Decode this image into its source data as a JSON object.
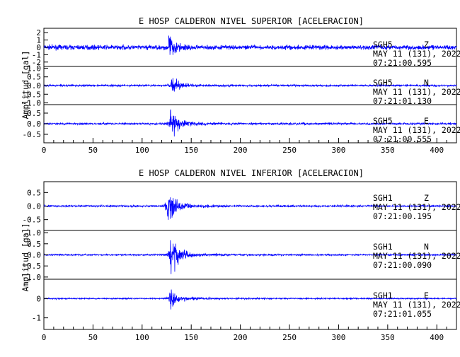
{
  "panels": [
    {
      "title": "E HOSP CALDERON NIVEL SUPERIOR [ACELERACION]",
      "ylabel": "Amplitud [gal]",
      "traces": [
        {
          "station": "SGH5",
          "component": "Z",
          "date": "MAY 11 (131), 2022",
          "time": "07:21:00.595",
          "ticks": [
            "2",
            "1",
            "0",
            "-1",
            "-2"
          ],
          "tick_values": [
            2,
            1,
            0,
            -1,
            -2
          ],
          "ylim": [
            -2.6,
            2.6
          ],
          "noise": 0.28,
          "peak": 1.9,
          "onset": 126,
          "jitter": 0.18
        },
        {
          "station": "SGH5",
          "component": "N",
          "date": "MAY 11 (131), 2022",
          "time": "07:21:01.130",
          "ticks": [
            "1.0",
            "0.5",
            "0.0",
            "-0.5",
            "-1.0"
          ],
          "tick_values": [
            1.0,
            0.5,
            0.0,
            -0.5,
            -1.0
          ],
          "ylim": [
            -1.1,
            1.1
          ],
          "noise": 0.05,
          "peak": 0.5,
          "onset": 129,
          "jitter": 0.05
        },
        {
          "station": "SGH5",
          "component": "E",
          "date": "MAY 11 (131), 2022",
          "time": "07:21:00.555",
          "ticks": [
            "0.5",
            "0.0",
            "-0.5"
          ],
          "tick_values": [
            0.5,
            0.0,
            -0.5
          ],
          "ylim": [
            -0.9,
            0.9
          ],
          "noise": 0.04,
          "peak": 0.8,
          "onset": 128,
          "jitter": 0.04
        }
      ]
    },
    {
      "title": "E HOSP CALDERON NIVEL INFERIOR [ACELERACION]",
      "ylabel": "Amplitud [gal]",
      "traces": [
        {
          "station": "SGH1",
          "component": "Z",
          "date": "MAY 11 (131), 2022",
          "time": "07:21:00.195",
          "ticks": [
            "0.5",
            "0.0",
            "-0.5"
          ],
          "tick_values": [
            0.5,
            0.0,
            -0.5
          ],
          "ylim": [
            -0.9,
            0.9
          ],
          "noise": 0.03,
          "peak": 0.75,
          "onset": 125,
          "jitter": 0.03
        },
        {
          "station": "SGH1",
          "component": "N",
          "date": "MAY 11 (131), 2022",
          "time": "07:21:00.090",
          "ticks": [
            "1.0",
            "0.5",
            "0.0",
            "-0.5",
            "-1.0"
          ],
          "tick_values": [
            1.0,
            0.5,
            0.0,
            -0.5,
            -1.0
          ],
          "ylim": [
            -1.1,
            1.1
          ],
          "noise": 0.03,
          "peak": 0.9,
          "onset": 128,
          "jitter": 0.03
        },
        {
          "station": "SGH1",
          "component": "E",
          "date": "MAY 11 (131), 2022",
          "time": "07:21:01.055",
          "ticks": [
            "0",
            "-1"
          ],
          "tick_values": [
            0,
            -1
          ],
          "ylim": [
            -1.6,
            1.0
          ],
          "noise": 0.03,
          "peak": 0.6,
          "onset": 127,
          "jitter": 0.03
        }
      ]
    }
  ],
  "xaxis": {
    "ticks": [
      "0",
      "50",
      "100",
      "150",
      "200",
      "250",
      "300",
      "350",
      "400"
    ],
    "tick_values": [
      0,
      50,
      100,
      150,
      200,
      250,
      300,
      350,
      400
    ],
    "range": [
      0,
      420
    ]
  },
  "trace_color": "#0000ff",
  "chart_data": {
    "type": "line",
    "title": "",
    "xlabel": "",
    "ylabel": "Amplitud [gal]",
    "xlim": [
      0,
      420
    ],
    "series": [
      {
        "name": "SGH5 Z",
        "onset": 126,
        "peak_abs": 1.9,
        "ylim": [
          -2.6,
          2.6
        ]
      },
      {
        "name": "SGH5 N",
        "onset": 129,
        "peak_abs": 0.5,
        "ylim": [
          -1.1,
          1.1
        ]
      },
      {
        "name": "SGH5 E",
        "onset": 128,
        "peak_abs": 0.8,
        "ylim": [
          -0.9,
          0.9
        ]
      },
      {
        "name": "SGH1 Z",
        "onset": 125,
        "peak_abs": 0.75,
        "ylim": [
          -0.9,
          0.9
        ]
      },
      {
        "name": "SGH1 N",
        "onset": 128,
        "peak_abs": 0.9,
        "ylim": [
          -1.1,
          1.1
        ]
      },
      {
        "name": "SGH1 E",
        "onset": 127,
        "peak_abs": 0.6,
        "ylim": [
          -1.6,
          1.0
        ]
      }
    ],
    "grid": false,
    "legend": "none"
  }
}
